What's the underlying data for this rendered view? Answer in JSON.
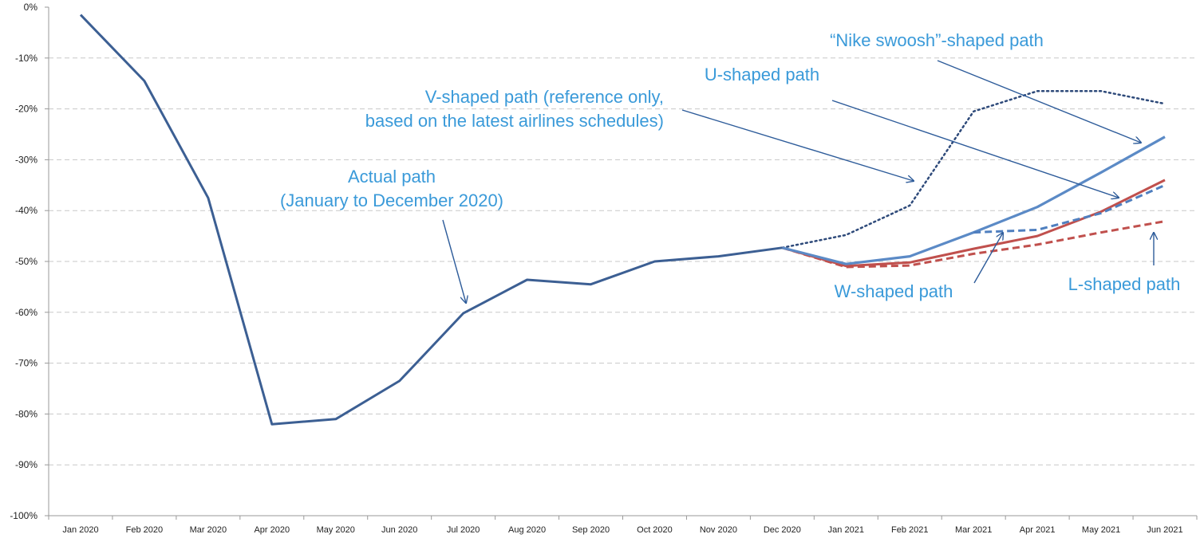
{
  "chart_data": {
    "type": "line",
    "title": "",
    "xlabel": "",
    "ylabel": "",
    "categories": [
      "Jan 2020",
      "Feb 2020",
      "Mar 2020",
      "Apr 2020",
      "May 2020",
      "Jun 2020",
      "Jul 2020",
      "Aug 2020",
      "Sep 2020",
      "Oct 2020",
      "Nov 2020",
      "Dec 2020",
      "Jan 2021",
      "Feb 2021",
      "Mar 2021",
      "Apr 2021",
      "May 2021",
      "Jun 2021"
    ],
    "y_ticks": [
      "0%",
      "-10%",
      "-20%",
      "-30%",
      "-40%",
      "-50%",
      "-60%",
      "-70%",
      "-80%",
      "-90%",
      "-100%"
    ],
    "ylim": [
      -100,
      0
    ],
    "grid": "horizontal dashed",
    "series": [
      {
        "id": "actual",
        "color": "#3c5f93",
        "style": "solid",
        "values": [
          -1.5,
          -14.5,
          -37.5,
          -82,
          -81,
          -73.5,
          -60.2,
          -53.6,
          -54.5,
          -50,
          -49,
          -47.3,
          null,
          null,
          null,
          null,
          null,
          null
        ]
      },
      {
        "id": "v",
        "color": "#2e4a7a",
        "style": "dotted",
        "values": [
          null,
          null,
          null,
          null,
          null,
          null,
          null,
          null,
          null,
          null,
          null,
          -47.3,
          -44.8,
          -39,
          -20.5,
          -16.5,
          -16.5,
          -19
        ]
      },
      {
        "id": "u",
        "color": "#5b8ac6",
        "style": "solid",
        "values": [
          null,
          null,
          null,
          null,
          null,
          null,
          null,
          null,
          null,
          null,
          null,
          -47.3,
          -50.5,
          -49,
          -44.3,
          -39.3,
          -32.5,
          -25.5
        ]
      },
      {
        "id": "red_solid",
        "color": "#c0504d",
        "style": "solid",
        "values": [
          null,
          null,
          null,
          null,
          null,
          null,
          null,
          null,
          null,
          null,
          null,
          -47.3,
          -50.9,
          -50.2,
          -47.5,
          -45,
          -40.2,
          -34
        ]
      },
      {
        "id": "w",
        "color": "#4f7fbf",
        "style": "dashed",
        "values": [
          null,
          null,
          null,
          null,
          null,
          null,
          null,
          null,
          null,
          null,
          null,
          null,
          null,
          null,
          -44.3,
          -43.8,
          -40.5,
          -35
        ]
      },
      {
        "id": "l",
        "color": "#c0504d",
        "style": "dashed",
        "values": [
          null,
          null,
          null,
          null,
          null,
          null,
          null,
          null,
          null,
          null,
          null,
          -47.3,
          -51.1,
          -50.8,
          -48.5,
          -46.7,
          -44.3,
          -42.1
        ]
      }
    ],
    "annotations": [
      {
        "id": "nike",
        "lines": [
          "“Nike swoosh”-shaped path"
        ]
      },
      {
        "id": "u",
        "lines": [
          "U-shaped path"
        ]
      },
      {
        "id": "v",
        "lines": [
          "V-shaped path (reference only,",
          "based on the latest airlines schedules)"
        ]
      },
      {
        "id": "actual",
        "lines": [
          "Actual path",
          "(January to December 2020)"
        ]
      },
      {
        "id": "w",
        "lines": [
          "W-shaped path"
        ]
      },
      {
        "id": "l",
        "lines": [
          "L-shaped path"
        ]
      }
    ]
  }
}
